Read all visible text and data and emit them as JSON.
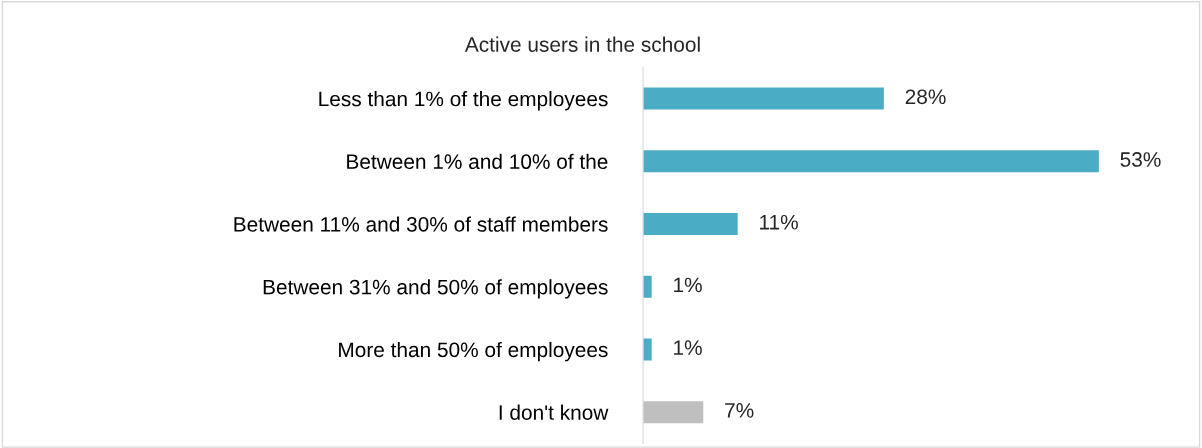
{
  "chart_data": {
    "type": "bar",
    "orientation": "horizontal",
    "title": "Active users in the school",
    "categories": [
      "Less than 1% of the employees",
      "Between 1% and 10% of the",
      "Between 11% and 30% of staff members",
      "Between 31% and 50% of employees",
      "More than 50% of employees",
      "I don't know"
    ],
    "values": [
      28,
      53,
      11,
      1,
      1,
      7
    ],
    "colors": [
      "#4bacc6",
      "#4bacc6",
      "#4bacc6",
      "#4bacc6",
      "#4bacc6",
      "#bfbfbf"
    ],
    "value_labels": [
      "28%",
      "53%",
      "11%",
      "1%",
      "1%",
      "7%"
    ],
    "grid": false,
    "legend": false
  }
}
